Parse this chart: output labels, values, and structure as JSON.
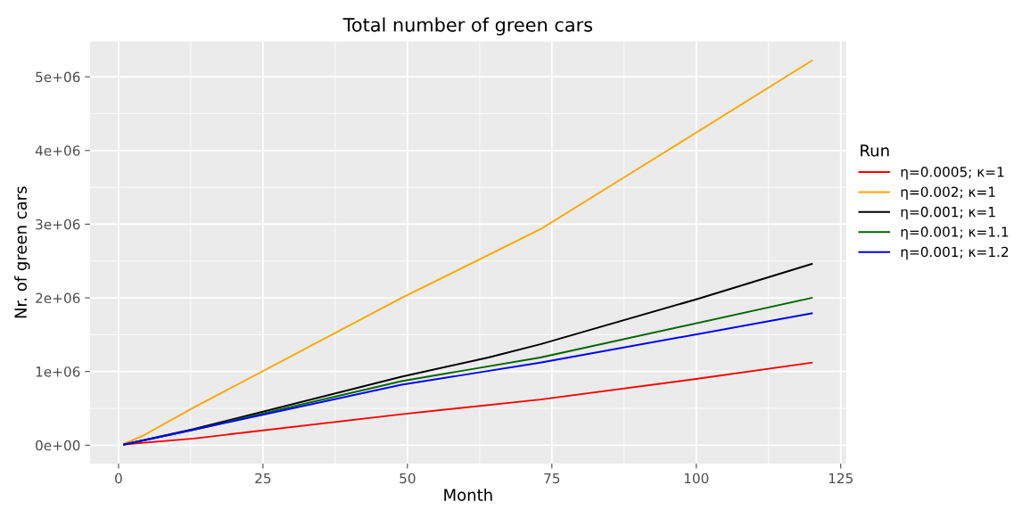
{
  "chart_data": {
    "type": "line",
    "title": "Total number of green cars",
    "xlabel": "Month",
    "ylabel": "Nr. of green cars",
    "legend_title": "Run",
    "legend": "right",
    "xlim": [
      -4.95,
      125.95
    ],
    "ylim": [
      -250000,
      5480000
    ],
    "xticks": [
      0,
      25,
      50,
      75,
      100,
      125
    ],
    "yticks": [
      {
        "value": 0,
        "label": "0e+00"
      },
      {
        "value": 1000000,
        "label": "1e+06"
      },
      {
        "value": 2000000,
        "label": "2e+06"
      },
      {
        "value": 3000000,
        "label": "3e+06"
      },
      {
        "value": 4000000,
        "label": "4e+06"
      },
      {
        "value": 5000000,
        "label": "5e+06"
      }
    ],
    "grid": true,
    "line_style": "solid",
    "marker": "none",
    "series": [
      {
        "name": "η=0.0005; κ=1",
        "color": "#ff0000",
        "x": [
          1,
          13,
          49,
          73,
          100,
          120
        ],
        "values": [
          10000,
          90000,
          420000,
          620000,
          900000,
          1120000
        ]
      },
      {
        "name": "η=0.002; κ=1",
        "color": "#ffa500",
        "x": [
          1,
          4.5,
          13,
          49,
          73,
          87,
          120
        ],
        "values": [
          20000,
          140000,
          510000,
          2000000,
          2930000,
          3610000,
          5220000
        ]
      },
      {
        "name": "η=0.001; κ=1",
        "color": "#000000",
        "x": [
          1,
          13,
          49,
          64,
          73,
          100,
          120
        ],
        "values": [
          10000,
          220000,
          930000,
          1190000,
          1370000,
          1980000,
          2460000
        ]
      },
      {
        "name": "η=0.001; κ=1.1",
        "color": "#006400",
        "x": [
          1,
          13,
          49,
          73,
          120
        ],
        "values": [
          10000,
          210000,
          870000,
          1190000,
          2000000
        ]
      },
      {
        "name": "η=0.001; κ=1.2",
        "color": "#0000ff",
        "x": [
          1,
          13,
          49,
          73,
          120
        ],
        "values": [
          10000,
          210000,
          820000,
          1120000,
          1790000
        ]
      }
    ]
  }
}
